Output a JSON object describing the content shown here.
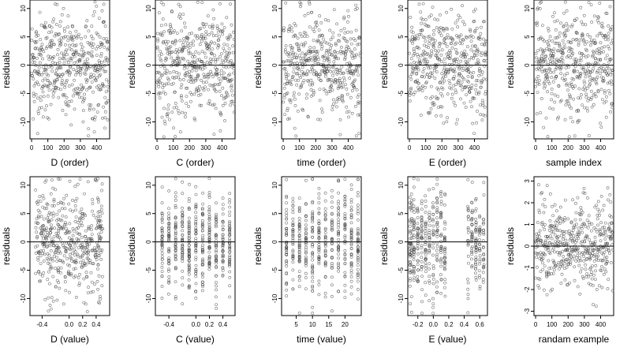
{
  "chart_data": [
    {
      "type": "scatter",
      "xlabel": "D (order)",
      "ylabel": "residuals",
      "x_ticks": [
        "0",
        "100",
        "200",
        "300",
        "400"
      ],
      "y_ticks": [
        "-10",
        "-5",
        "0",
        "5",
        "10"
      ],
      "xlim": [
        -10,
        480
      ],
      "ylim": [
        -13,
        11.5
      ],
      "hline": 0,
      "point_count": 480,
      "distribution": "index"
    },
    {
      "type": "scatter",
      "xlabel": "C (order)",
      "ylabel": "residuals",
      "x_ticks": [
        "0",
        "100",
        "200",
        "300",
        "400"
      ],
      "y_ticks": [
        "-10",
        "-5",
        "0",
        "5",
        "10"
      ],
      "xlim": [
        -10,
        480
      ],
      "ylim": [
        -13,
        11.5
      ],
      "hline": 0,
      "point_count": 480,
      "distribution": "index"
    },
    {
      "type": "scatter",
      "xlabel": "time (order)",
      "ylabel": "residuals",
      "x_ticks": [
        "0",
        "100",
        "200",
        "300",
        "400"
      ],
      "y_ticks": [
        "-10",
        "-5",
        "0",
        "5",
        "10"
      ],
      "xlim": [
        -10,
        480
      ],
      "ylim": [
        -13,
        11.5
      ],
      "hline": 0,
      "point_count": 480,
      "distribution": "index"
    },
    {
      "type": "scatter",
      "xlabel": "E (order)",
      "ylabel": "residuals",
      "x_ticks": [
        "0",
        "100",
        "200",
        "300",
        "400"
      ],
      "y_ticks": [
        "-10",
        "-5",
        "0",
        "5",
        "10"
      ],
      "xlim": [
        -10,
        480
      ],
      "ylim": [
        -13,
        11.5
      ],
      "hline": 0,
      "point_count": 480,
      "distribution": "index"
    },
    {
      "type": "scatter",
      "xlabel": "sample index",
      "ylabel": "residuals",
      "x_ticks": [
        "0",
        "100",
        "200",
        "300",
        "400"
      ],
      "y_ticks": [
        "-10",
        "-5",
        "0",
        "5",
        "10"
      ],
      "xlim": [
        -10,
        480
      ],
      "ylim": [
        -13,
        11.5
      ],
      "hline": 0,
      "point_count": 480,
      "distribution": "index"
    },
    {
      "type": "scatter",
      "xlabel": "D (value)",
      "ylabel": "residuals",
      "x_ticks": [
        "-0.4",
        "0.0",
        "0.2",
        "0.4"
      ],
      "y_ticks": [
        "-10",
        "-5",
        "0",
        "5",
        "10"
      ],
      "xlim": [
        -0.58,
        0.6
      ],
      "ylim": [
        -13,
        11.5
      ],
      "hline": 0,
      "point_count": 480,
      "distribution": "continuous"
    },
    {
      "type": "scatter",
      "xlabel": "C (value)",
      "ylabel": "residuals",
      "x_ticks": [
        "-0.4",
        "0.0",
        "0.2",
        "0.4"
      ],
      "y_ticks": [
        "-10",
        "-5",
        "0",
        "5",
        "10"
      ],
      "xlim": [
        -0.6,
        0.58
      ],
      "ylim": [
        -13,
        11.5
      ],
      "hline": 0,
      "point_count": 480,
      "distribution": "discrete",
      "levels": [
        -0.5,
        -0.4,
        -0.3,
        -0.2,
        -0.1,
        0.0,
        0.1,
        0.2,
        0.3,
        0.4,
        0.5
      ]
    },
    {
      "type": "scatter",
      "xlabel": "time (value)",
      "ylabel": "residuals",
      "x_ticks": [
        "5",
        "10",
        "15",
        "20"
      ],
      "y_ticks": [
        "-10",
        "-5",
        "0",
        "5",
        "10"
      ],
      "xlim": [
        0.5,
        25
      ],
      "ylim": [
        -13,
        11.5
      ],
      "hline": 0,
      "point_count": 480,
      "distribution": "discrete",
      "levels": [
        2,
        4,
        6,
        8,
        10,
        12,
        14,
        16,
        18,
        20,
        22,
        24
      ]
    },
    {
      "type": "scatter",
      "xlabel": "E (value)",
      "ylabel": "residuals",
      "x_ticks": [
        "-0.2",
        "0.0",
        "0.2",
        "0.4",
        "0.6"
      ],
      "y_ticks": [
        "-10",
        "-5",
        "0",
        "5",
        "10"
      ],
      "xlim": [
        -0.33,
        0.7
      ],
      "ylim": [
        -13,
        11.5
      ],
      "hline": 0,
      "point_count": 480,
      "distribution": "clustered",
      "levels": [
        -0.3,
        -0.28,
        -0.25,
        -0.2,
        -0.15,
        -0.1,
        -0.05,
        0.0,
        0.05,
        0.1,
        0.15,
        0.45,
        0.5,
        0.55,
        0.6,
        0.65
      ]
    },
    {
      "type": "scatter",
      "xlabel": "randam example",
      "ylabel": "residuals",
      "x_ticks": [
        "0",
        "100",
        "200",
        "300",
        "400"
      ],
      "y_ticks": [
        "-3",
        "-2",
        "-1",
        "0",
        "1",
        "2",
        "3"
      ],
      "xlim": [
        -10,
        480
      ],
      "ylim": [
        -3.2,
        3.2
      ],
      "hline": 0,
      "point_count": 480,
      "distribution": "index"
    }
  ]
}
